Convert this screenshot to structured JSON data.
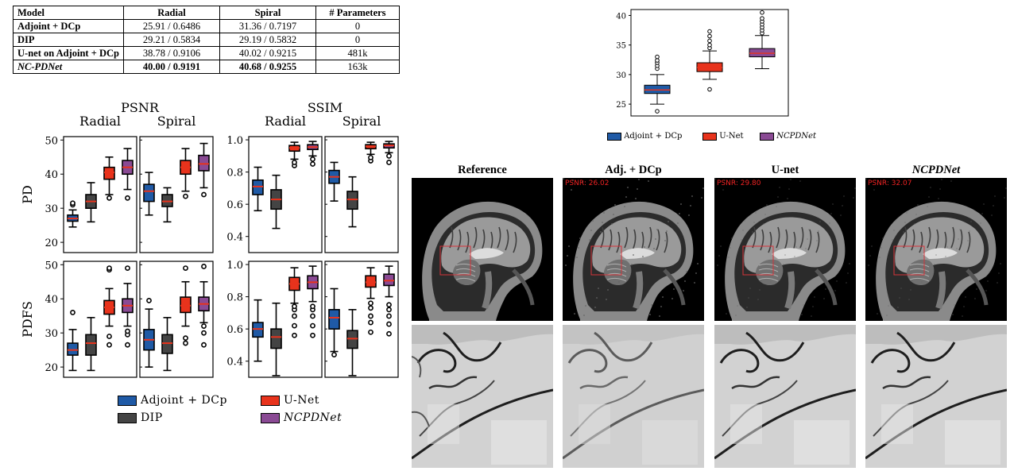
{
  "table": {
    "headers": [
      "Model",
      "Radial",
      "Spiral",
      "# Parameters"
    ],
    "rows": [
      {
        "model": "Adjoint + DCp",
        "radial": "25.91 / 0.6486",
        "spiral": "31.36 / 0.7197",
        "params": "0"
      },
      {
        "model": "DIP",
        "radial": "29.21 / 0.5834",
        "spiral": "29.19 / 0.5832",
        "params": "0"
      },
      {
        "model": "U-net on Adjoint + DCp",
        "radial": "38.78 / 0.9106",
        "spiral": "40.02 / 0.9215",
        "params": "481k"
      },
      {
        "model": "NC-PDNet",
        "radial": "40.00 / 0.9191",
        "spiral": "40.68 / 0.9255",
        "params": "163k"
      }
    ]
  },
  "colors": {
    "adjoint": "#1f5aa6",
    "dip": "#444444",
    "unet": "#e8331c",
    "ncpdnet": "#8a4a94",
    "median": "#e8331c"
  },
  "chart_data": [
    {
      "type": "box",
      "title": "PSNR",
      "columns": [
        "Radial",
        "Spiral"
      ],
      "rows": [
        "PD",
        "PDFS"
      ],
      "ylim": [
        17,
        51
      ],
      "yticks": [
        20,
        30,
        40,
        50
      ],
      "series": [
        "Adjoint + DCp",
        "DIP",
        "U-Net",
        "NCPDNet"
      ],
      "boxes": {
        "PD": {
          "Radial": [
            {
              "lo": 24.5,
              "q1": 26.2,
              "med": 27.0,
              "q3": 28.0,
              "hi": 29.5,
              "out": [
                31,
                31.5
              ]
            },
            {
              "lo": 26,
              "q1": 30,
              "med": 32,
              "q3": 34,
              "hi": 37.5,
              "out": []
            },
            {
              "lo": 34,
              "q1": 38.5,
              "med": 40.5,
              "q3": 42,
              "hi": 45,
              "out": [
                33
              ]
            },
            {
              "lo": 35.5,
              "q1": 40,
              "med": 42,
              "q3": 44,
              "hi": 47.5,
              "out": [
                33
              ]
            }
          ],
          "Spiral": [
            {
              "lo": 28,
              "q1": 32,
              "med": 35,
              "q3": 37,
              "hi": 40.5,
              "out": []
            },
            {
              "lo": 26,
              "q1": 30.5,
              "med": 32,
              "q3": 34,
              "hi": 36,
              "out": []
            },
            {
              "lo": 35,
              "q1": 40,
              "med": 42,
              "q3": 44,
              "hi": 47.5,
              "out": [
                33.5
              ]
            },
            {
              "lo": 36,
              "q1": 41,
              "med": 43,
              "q3": 45.5,
              "hi": 49,
              "out": [
                34
              ]
            }
          ]
        },
        "PDFS": {
          "Radial": [
            {
              "lo": 19,
              "q1": 23.5,
              "med": 25,
              "q3": 27,
              "hi": 31,
              "out": [
                36
              ]
            },
            {
              "lo": 19,
              "q1": 23.5,
              "med": 27,
              "q3": 29.5,
              "hi": 34.5,
              "out": []
            },
            {
              "lo": 32,
              "q1": 35.5,
              "med": 37.5,
              "q3": 39.5,
              "hi": 43,
              "out": [
                26.5,
                29,
                48.5,
                49
              ]
            },
            {
              "lo": 32,
              "q1": 36,
              "med": 38,
              "q3": 40,
              "hi": 44.5,
              "out": [
                26.5,
                29.5,
                30.5,
                49
              ]
            }
          ],
          "Spiral": [
            {
              "lo": 20,
              "q1": 25,
              "med": 28,
              "q3": 31,
              "hi": 37,
              "out": [
                39.5
              ]
            },
            {
              "lo": 19,
              "q1": 24,
              "med": 27,
              "q3": 29.5,
              "hi": 34.5,
              "out": []
            },
            {
              "lo": 32,
              "q1": 36,
              "med": 38,
              "q3": 40.5,
              "hi": 45,
              "out": [
                27,
                28.5,
                49
              ]
            },
            {
              "lo": 33,
              "q1": 36.5,
              "med": 38.5,
              "q3": 40.5,
              "hi": 45,
              "out": [
                26.5,
                30,
                32,
                49.5
              ]
            }
          ]
        }
      }
    },
    {
      "type": "box",
      "title": "SSIM",
      "columns": [
        "Radial",
        "Spiral"
      ],
      "rows": [
        "PD",
        "PDFS"
      ],
      "ylim": [
        0.3,
        1.02
      ],
      "yticks": [
        0.4,
        0.6,
        0.8,
        1.0
      ],
      "series": [
        "Adjoint + DCp",
        "DIP",
        "U-Net",
        "NCPDNet"
      ],
      "boxes": {
        "PD": {
          "Radial": [
            {
              "lo": 0.56,
              "q1": 0.66,
              "med": 0.71,
              "q3": 0.75,
              "hi": 0.83,
              "out": []
            },
            {
              "lo": 0.45,
              "q1": 0.57,
              "med": 0.63,
              "q3": 0.69,
              "hi": 0.78,
              "out": []
            },
            {
              "lo": 0.88,
              "q1": 0.93,
              "med": 0.95,
              "q3": 0.965,
              "hi": 0.985,
              "out": [
                0.84,
                0.86
              ]
            },
            {
              "lo": 0.9,
              "q1": 0.94,
              "med": 0.955,
              "q3": 0.97,
              "hi": 0.99,
              "out": [
                0.85,
                0.88
              ]
            }
          ],
          "Spiral": [
            {
              "lo": 0.62,
              "q1": 0.73,
              "med": 0.77,
              "q3": 0.81,
              "hi": 0.86,
              "out": []
            },
            {
              "lo": 0.46,
              "q1": 0.57,
              "med": 0.63,
              "q3": 0.68,
              "hi": 0.77,
              "out": []
            },
            {
              "lo": 0.91,
              "q1": 0.945,
              "med": 0.96,
              "q3": 0.97,
              "hi": 0.985,
              "out": [
                0.87,
                0.89
              ]
            },
            {
              "lo": 0.92,
              "q1": 0.95,
              "med": 0.965,
              "q3": 0.975,
              "hi": 0.99,
              "out": [
                0.86,
                0.9
              ]
            }
          ]
        },
        "PDFS": {
          "Radial": [
            {
              "lo": 0.4,
              "q1": 0.55,
              "med": 0.6,
              "q3": 0.64,
              "hi": 0.78,
              "out": []
            },
            {
              "lo": 0.31,
              "q1": 0.48,
              "med": 0.55,
              "q3": 0.6,
              "hi": 0.76,
              "out": []
            },
            {
              "lo": 0.76,
              "q1": 0.84,
              "med": 0.88,
              "q3": 0.92,
              "hi": 0.98,
              "out": [
                0.56,
                0.62,
                0.68,
                0.72,
                0.74
              ]
            },
            {
              "lo": 0.77,
              "q1": 0.85,
              "med": 0.89,
              "q3": 0.93,
              "hi": 0.99,
              "out": [
                0.56,
                0.62,
                0.68,
                0.72,
                0.74
              ]
            }
          ],
          "Spiral": [
            {
              "lo": 0.46,
              "q1": 0.6,
              "med": 0.67,
              "q3": 0.72,
              "hi": 0.85,
              "out": [
                0.44
              ]
            },
            {
              "lo": 0.31,
              "q1": 0.48,
              "med": 0.54,
              "q3": 0.59,
              "hi": 0.72,
              "out": []
            },
            {
              "lo": 0.79,
              "q1": 0.86,
              "med": 0.89,
              "q3": 0.93,
              "hi": 0.98,
              "out": [
                0.58,
                0.64,
                0.68,
                0.73,
                0.76
              ]
            },
            {
              "lo": 0.8,
              "q1": 0.87,
              "med": 0.9,
              "q3": 0.94,
              "hi": 0.99,
              "out": [
                0.57,
                0.63,
                0.68,
                0.72,
                0.75
              ]
            }
          ]
        }
      }
    },
    {
      "type": "box",
      "title": "",
      "ylim": [
        23,
        41
      ],
      "yticks": [
        25,
        30,
        35,
        40
      ],
      "series": [
        "Adjoint + DCp",
        "U-Net",
        "NCPDNet"
      ],
      "boxes": [
        {
          "lo": 25,
          "q1": 26.8,
          "med": 27.4,
          "q3": 28.2,
          "hi": 30,
          "out": [
            23.8,
            31,
            31.5,
            32,
            32.4,
            33
          ]
        },
        {
          "lo": 29.2,
          "q1": 30.5,
          "med": 31.2,
          "q3": 32.0,
          "hi": 34,
          "out": [
            27.5,
            34.5,
            35,
            35.7,
            36.5,
            37.3
          ]
        },
        {
          "lo": 31,
          "q1": 33.0,
          "med": 33.6,
          "q3": 34.4,
          "hi": 36.6,
          "out": [
            37,
            37.5,
            38,
            38.5,
            39,
            39.5,
            40.5
          ]
        }
      ]
    }
  ],
  "legend_main": [
    "Adjoint + DCp",
    "U-Net",
    "DIP",
    "NCPDNet"
  ],
  "legend_top": [
    "Adjoint + DCp",
    "U-Net",
    "NCPDNet"
  ],
  "mri": {
    "titles": [
      "Reference",
      "Adj. + DCp",
      "U-net",
      "NCPDNet"
    ],
    "psnr": [
      "",
      "PSNR: 26.02",
      "PSNR: 29.80",
      "PSNR: 32.07"
    ]
  }
}
